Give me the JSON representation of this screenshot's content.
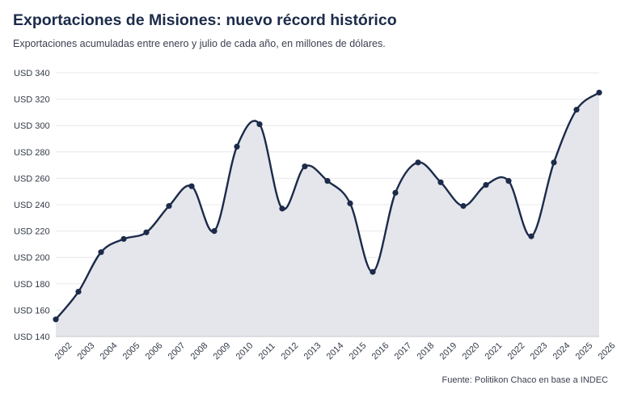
{
  "title": "Exportaciones de Misiones: nuevo récord histórico",
  "subtitle": "Exportaciones acumuladas entre enero y julio de cada año, en millones de dólares.",
  "source": "Fuente: Politikon Chaco en base a INDEC",
  "colors": {
    "line": "#1c2b4a",
    "area": "#e5e6eb",
    "grid": "#e8e8ec",
    "axis": "#c8c8d0"
  },
  "chart_data": {
    "type": "area",
    "x": [
      "2002",
      "2003",
      "2004",
      "2005",
      "2006",
      "2007",
      "2008",
      "2009",
      "2010",
      "2011",
      "2012",
      "2013",
      "2014",
      "2015",
      "2016",
      "2017",
      "2018",
      "2019",
      "2020",
      "2021",
      "2022",
      "2023",
      "2024",
      "2025",
      "2026"
    ],
    "series": [
      {
        "values": [
          153,
          174,
          204,
          214,
          219,
          239,
          254,
          220,
          284,
          301,
          237,
          269,
          258,
          241,
          189,
          249,
          272,
          257,
          239,
          255,
          258,
          216,
          272,
          312,
          325
        ]
      }
    ],
    "ylim": [
      140,
      340
    ],
    "yticks": [
      140,
      160,
      180,
      200,
      220,
      240,
      260,
      280,
      300,
      320,
      340
    ],
    "ytick_labels": [
      "USD 140",
      "USD 160",
      "USD 180",
      "USD 200",
      "USD 220",
      "USD 240",
      "USD 260",
      "USD 280",
      "USD 300",
      "USD 320",
      "USD 340"
    ],
    "grid": true,
    "smooth": true,
    "markers": true
  }
}
